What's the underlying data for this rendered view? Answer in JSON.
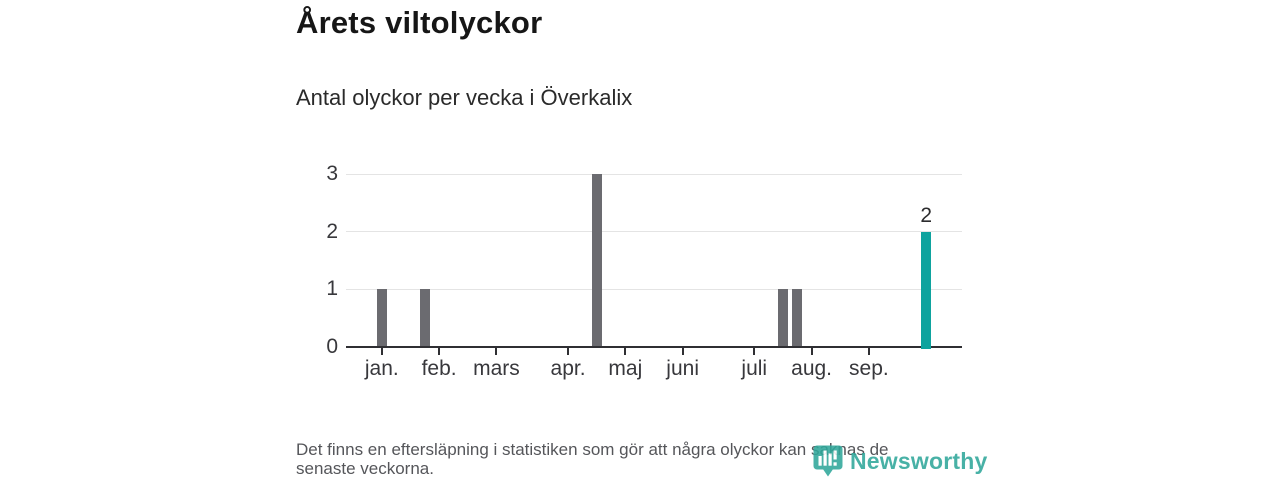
{
  "title": "Årets viltolyckor",
  "subtitle": "Antal olyckor per vecka i Överkalix",
  "footnote": {
    "line1": "Det finns en eftersläpning i statistiken som gör att några olyckor kan saknas de",
    "line2": "senaste veckorna."
  },
  "brand": {
    "name": "Newsworthy",
    "color": "#2fa79a"
  },
  "chart_data": {
    "type": "bar",
    "title": "Årets viltolyckor",
    "subtitle": "Antal olyckor per vecka i Överkalix",
    "x_unit": "vecka",
    "ylim": [
      0,
      3
    ],
    "y_ticks": [
      0,
      1,
      2,
      3
    ],
    "grid": true,
    "num_week_slots": 43,
    "x_ticks": [
      {
        "label": "jan.",
        "slot": 2
      },
      {
        "label": "feb.",
        "slot": 6
      },
      {
        "label": "mars",
        "slot": 10
      },
      {
        "label": "apr.",
        "slot": 15
      },
      {
        "label": "maj",
        "slot": 19
      },
      {
        "label": "juni",
        "slot": 23
      },
      {
        "label": "juli",
        "slot": 28
      },
      {
        "label": "aug.",
        "slot": 32
      },
      {
        "label": "sep.",
        "slot": 36
      }
    ],
    "bars": [
      {
        "slot": 2,
        "value": 1,
        "highlight": false
      },
      {
        "slot": 5,
        "value": 1,
        "highlight": false
      },
      {
        "slot": 17,
        "value": 3,
        "highlight": false
      },
      {
        "slot": 30,
        "value": 1,
        "highlight": false
      },
      {
        "slot": 31,
        "value": 1,
        "highlight": false
      },
      {
        "slot": 40,
        "value": 2,
        "highlight": true,
        "data_label": "2"
      }
    ],
    "colors": {
      "bar": "#6b6b70",
      "bar_highlight": "#0ea39e",
      "gridline": "#e4e4e4",
      "axis": "#2f2f33",
      "tick_label": "#38383c"
    }
  }
}
